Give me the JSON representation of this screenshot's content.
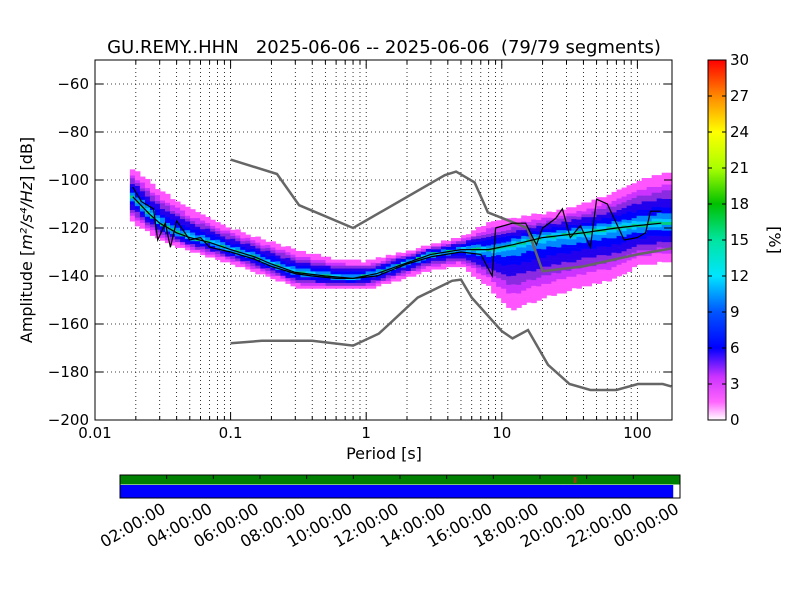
{
  "chart_data": [
    {
      "type": "heatmap",
      "title": "GU.REMY..HHN   2025-06-06 -- 2025-06-06  (79/79 segments)",
      "xlabel": "Period [s]",
      "ylabel_prefix": "Amplitude [",
      "ylabel_math": "m²/s⁴/Hz",
      "ylabel_suffix": "] [dB]",
      "x_scale": "log",
      "xlim": [
        0.01,
        180
      ],
      "ylim": [
        -200,
        -50
      ],
      "xticks": [
        {
          "value": 0.01,
          "label": "0.01"
        },
        {
          "value": 0.1,
          "label": "0.1"
        },
        {
          "value": 1,
          "label": "1"
        },
        {
          "value": 10,
          "label": "10"
        },
        {
          "value": 100,
          "label": "100"
        }
      ],
      "yticks": [
        {
          "value": -60,
          "label": "−60"
        },
        {
          "value": -80,
          "label": "−80"
        },
        {
          "value": -100,
          "label": "−100"
        },
        {
          "value": -120,
          "label": "−120"
        },
        {
          "value": -140,
          "label": "−140"
        },
        {
          "value": -160,
          "label": "−160"
        },
        {
          "value": -180,
          "label": "−180"
        },
        {
          "value": -200,
          "label": "−200"
        }
      ],
      "grid": true,
      "colorbar": {
        "label": "[%]",
        "range": [
          0,
          30
        ],
        "ticks": [
          "0",
          "3",
          "6",
          "9",
          "12",
          "15",
          "18",
          "21",
          "24",
          "27",
          "30"
        ]
      },
      "noise_model_high": [
        [
          0.1,
          -91.5
        ],
        [
          0.22,
          -97.5
        ],
        [
          0.32,
          -110.5
        ],
        [
          0.8,
          -120
        ],
        [
          3.8,
          -98
        ],
        [
          4.6,
          -96.5
        ],
        [
          6.3,
          -101
        ],
        [
          7.9,
          -113.5
        ],
        [
          15.4,
          -120
        ],
        [
          20,
          -138
        ],
        [
          40,
          -136
        ],
        [
          100,
          -131
        ],
        [
          180,
          -128.5
        ]
      ],
      "noise_model_low": [
        [
          0.1,
          -168
        ],
        [
          0.17,
          -167
        ],
        [
          0.4,
          -167
        ],
        [
          0.8,
          -169
        ],
        [
          1.24,
          -164
        ],
        [
          2.4,
          -149
        ],
        [
          4.3,
          -142
        ],
        [
          5,
          -141.5
        ],
        [
          6,
          -149
        ],
        [
          10,
          -163
        ],
        [
          12,
          -166
        ],
        [
          15.6,
          -162.5
        ],
        [
          21.9,
          -177
        ],
        [
          31.6,
          -185
        ],
        [
          45,
          -187.5
        ],
        [
          70,
          -187.5
        ],
        [
          101,
          -185
        ],
        [
          154,
          -185
        ],
        [
          178,
          -186
        ]
      ],
      "mean_psd": [
        [
          0.019,
          -107
        ],
        [
          0.025,
          -114
        ],
        [
          0.03,
          -118
        ],
        [
          0.04,
          -122
        ],
        [
          0.05,
          -124
        ],
        [
          0.07,
          -126
        ],
        [
          0.1,
          -129
        ],
        [
          0.15,
          -132
        ],
        [
          0.2,
          -135
        ],
        [
          0.3,
          -138.5
        ],
        [
          0.5,
          -140
        ],
        [
          0.8,
          -141
        ],
        [
          1.2,
          -139
        ],
        [
          2,
          -134.5
        ],
        [
          3,
          -131
        ],
        [
          5,
          -129
        ],
        [
          8,
          -129
        ],
        [
          12,
          -127
        ],
        [
          20,
          -124
        ],
        [
          40,
          -122
        ],
        [
          70,
          -120
        ],
        [
          100,
          -119
        ],
        [
          150,
          -118
        ]
      ],
      "mode_psd": [
        [
          0.019,
          -103
        ],
        [
          0.022,
          -109
        ],
        [
          0.027,
          -112
        ],
        [
          0.029,
          -125
        ],
        [
          0.033,
          -118
        ],
        [
          0.036,
          -128
        ],
        [
          0.04,
          -117
        ],
        [
          0.05,
          -125
        ],
        [
          0.06,
          -124
        ],
        [
          0.07,
          -128
        ],
        [
          0.1,
          -130
        ],
        [
          0.15,
          -133
        ],
        [
          0.2,
          -136
        ],
        [
          0.3,
          -139
        ],
        [
          0.4,
          -140
        ],
        [
          0.6,
          -141
        ],
        [
          0.8,
          -141
        ],
        [
          1.2,
          -140
        ],
        [
          2,
          -135
        ],
        [
          3,
          -132
        ],
        [
          5,
          -130
        ],
        [
          7,
          -131
        ],
        [
          8.5,
          -140
        ],
        [
          9,
          -120
        ],
        [
          12,
          -118
        ],
        [
          15,
          -118
        ],
        [
          18,
          -127
        ],
        [
          20,
          -120
        ],
        [
          25,
          -116
        ],
        [
          28,
          -112
        ],
        [
          32,
          -124
        ],
        [
          38,
          -119
        ],
        [
          45,
          -128
        ],
        [
          50,
          -108
        ],
        [
          60,
          -110
        ],
        [
          80,
          -125
        ],
        [
          100,
          -124
        ],
        [
          115,
          -122
        ],
        [
          125,
          -113
        ],
        [
          150,
          -113
        ]
      ],
      "density_band": [
        [
          0.019,
          -95,
          -118
        ],
        [
          0.03,
          -104,
          -125
        ],
        [
          0.05,
          -112,
          -130
        ],
        [
          0.1,
          -120,
          -135
        ],
        [
          0.2,
          -126,
          -141
        ],
        [
          0.3,
          -129,
          -145
        ],
        [
          0.6,
          -133,
          -146
        ],
        [
          1,
          -134,
          -146
        ],
        [
          2,
          -130,
          -141
        ],
        [
          3,
          -127,
          -138
        ],
        [
          5,
          -124,
          -136
        ],
        [
          8,
          -118,
          -145
        ],
        [
          12,
          -116,
          -155
        ],
        [
          20,
          -114,
          -150
        ],
        [
          40,
          -110,
          -145
        ],
        [
          70,
          -105,
          -142
        ],
        [
          100,
          -100,
          -136
        ],
        [
          150,
          -97,
          -135
        ]
      ]
    },
    {
      "type": "timeline",
      "xticks": [
        "02:00:00",
        "04:00:00",
        "06:00:00",
        "08:00:00",
        "10:00:00",
        "12:00:00",
        "14:00:00",
        "16:00:00",
        "18:00:00",
        "20:00:00",
        "22:00:00",
        "00:00:00"
      ],
      "data_coverage_end_fraction": 0.987,
      "colors": {
        "coverage_top": "#008000",
        "coverage_bottom": "#0000ff",
        "marker": "#8b4513"
      }
    }
  ]
}
